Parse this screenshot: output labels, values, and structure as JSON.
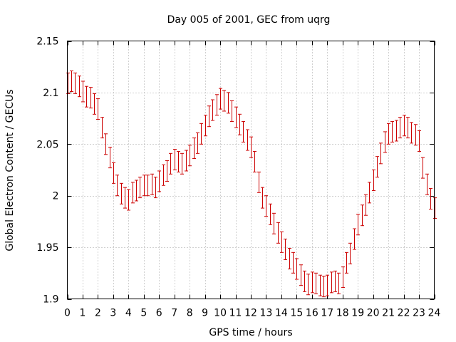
{
  "chart_data": {
    "type": "scatter",
    "style": "errorbars",
    "title": "Day 005 of 2001, GEC from uqrg",
    "xlabel": "GPS time / hours",
    "ylabel": "Global Electron Content / GECUs",
    "xlim": [
      0,
      24
    ],
    "ylim": [
      1.9,
      2.15
    ],
    "grid": true,
    "series_color": "#cc0000",
    "error": 0.01,
    "x_ticks": [
      "0",
      "1",
      "2",
      "3",
      "4",
      "5",
      "6",
      "7",
      "8",
      "9",
      "10",
      "11",
      "12",
      "13",
      "14",
      "15",
      "16",
      "17",
      "18",
      "19",
      "20",
      "21",
      "22",
      "23",
      "24"
    ],
    "y_ticks": [
      "1.9",
      "1.95",
      "2",
      "2.05",
      "2.1",
      "2.15"
    ],
    "series": [
      {
        "name": "GEC",
        "x": [
          0.0,
          0.25,
          0.5,
          0.75,
          1.0,
          1.25,
          1.5,
          1.75,
          2.0,
          2.25,
          2.5,
          2.75,
          3.0,
          3.25,
          3.5,
          3.75,
          4.0,
          4.25,
          4.5,
          4.75,
          5.0,
          5.25,
          5.5,
          5.75,
          6.0,
          6.25,
          6.5,
          6.75,
          7.0,
          7.25,
          7.5,
          7.75,
          8.0,
          8.25,
          8.5,
          8.75,
          9.0,
          9.25,
          9.5,
          9.75,
          10.0,
          10.25,
          10.5,
          10.75,
          11.0,
          11.25,
          11.5,
          11.75,
          12.0,
          12.25,
          12.5,
          12.75,
          13.0,
          13.25,
          13.5,
          13.75,
          14.0,
          14.25,
          14.5,
          14.75,
          15.0,
          15.25,
          15.5,
          15.75,
          16.0,
          16.25,
          16.5,
          16.75,
          17.0,
          17.25,
          17.5,
          17.75,
          18.0,
          18.25,
          18.5,
          18.75,
          19.0,
          19.25,
          19.5,
          19.75,
          20.0,
          20.25,
          20.5,
          20.75,
          21.0,
          21.25,
          21.5,
          21.75,
          22.0,
          22.25,
          22.5,
          22.75,
          23.0,
          23.25,
          23.5,
          23.75,
          24.0
        ],
        "y": [
          2.109,
          2.111,
          2.109,
          2.106,
          2.101,
          2.096,
          2.095,
          2.089,
          2.084,
          2.066,
          2.05,
          2.037,
          2.022,
          2.01,
          2.002,
          1.998,
          1.996,
          2.003,
          2.005,
          2.008,
          2.01,
          2.01,
          2.011,
          2.008,
          2.014,
          2.02,
          2.024,
          2.031,
          2.035,
          2.033,
          2.031,
          2.034,
          2.039,
          2.046,
          2.051,
          2.06,
          2.068,
          2.077,
          2.083,
          2.088,
          2.094,
          2.092,
          2.09,
          2.082,
          2.076,
          2.069,
          2.062,
          2.054,
          2.047,
          2.033,
          2.013,
          1.998,
          1.99,
          1.982,
          1.973,
          1.964,
          1.955,
          1.948,
          1.939,
          1.935,
          1.929,
          1.923,
          1.917,
          1.914,
          1.916,
          1.915,
          1.913,
          1.912,
          1.913,
          1.916,
          1.917,
          1.915,
          1.921,
          1.935,
          1.944,
          1.958,
          1.972,
          1.981,
          1.991,
          2.003,
          2.015,
          2.028,
          2.041,
          2.052,
          2.06,
          2.062,
          2.063,
          2.066,
          2.068,
          2.066,
          2.061,
          2.059,
          2.053,
          2.027,
          2.011,
          1.997,
          1.988
        ]
      }
    ]
  }
}
